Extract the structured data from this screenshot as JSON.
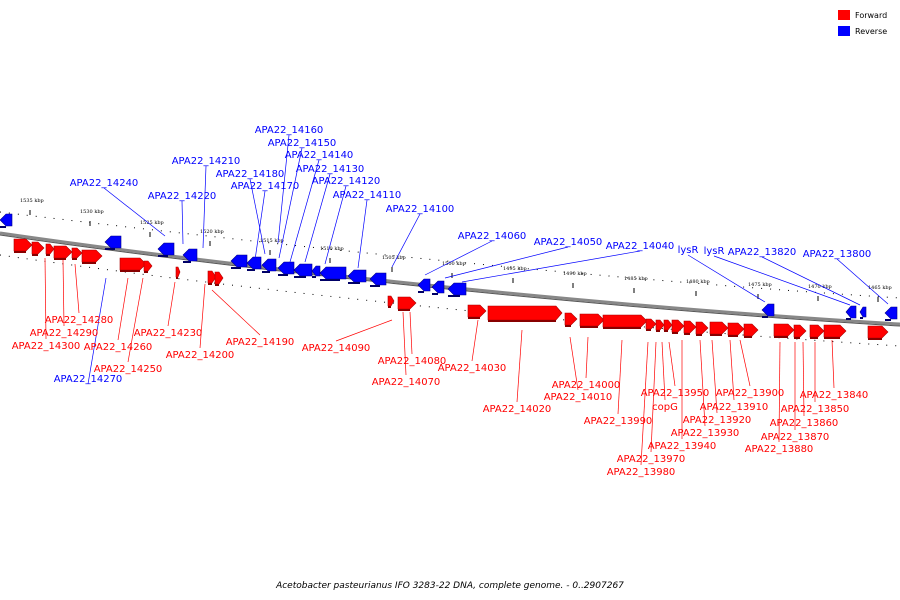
{
  "legend": {
    "forward": {
      "label": "Forward",
      "color": "#ff0000"
    },
    "reverse": {
      "label": "Reverse",
      "color": "#0000ff"
    }
  },
  "caption": "Acetobacter pasteurianus IFO 3283-22 DNA, complete genome. - 0..2907267",
  "ticks": [
    "1535 kbp",
    "1530 kbp",
    "1525 kbp",
    "1520 kbp",
    "1515 kbp",
    "1510 kbp",
    "1505 kbp",
    "1500 kbp",
    "1495 kbp",
    "1490 kbp",
    "1485 kbp",
    "1480 kbp",
    "1475 kbp",
    "1470 kbp",
    "1465 kbp"
  ],
  "reverse_genes": [
    "APA22_14160",
    "APA22_14150",
    "APA22_14140",
    "APA22_14210",
    "APA22_14180",
    "APA22_14130",
    "APA22_14240",
    "APA22_14170",
    "APA22_14120",
    "APA22_14220",
    "APA22_14110",
    "APA22_14100",
    "APA22_14060",
    "APA22_14050",
    "APA22_14040",
    "lysR",
    "lysR",
    "APA22_13820",
    "APA22_13800",
    "APA22_14270"
  ],
  "forward_genes": [
    "APA22_14280",
    "APA22_14290",
    "APA22_14300",
    "APA22_14230",
    "APA22_14260",
    "APA22_14190",
    "APA22_14250",
    "APA22_14200",
    "APA22_14090",
    "APA22_14080",
    "APA22_14070",
    "APA22_14030",
    "APA22_14000",
    "APA22_14010",
    "APA22_14020",
    "APA22_13990",
    "APA22_13950",
    "copG",
    "APA22_13900",
    "APA22_13910",
    "APA22_13840",
    "APA22_13920",
    "APA22_13850",
    "APA22_13930",
    "APA22_13860",
    "APA22_13940",
    "APA22_13870",
    "APA22_13880",
    "APA22_13970",
    "APA22_13980"
  ]
}
